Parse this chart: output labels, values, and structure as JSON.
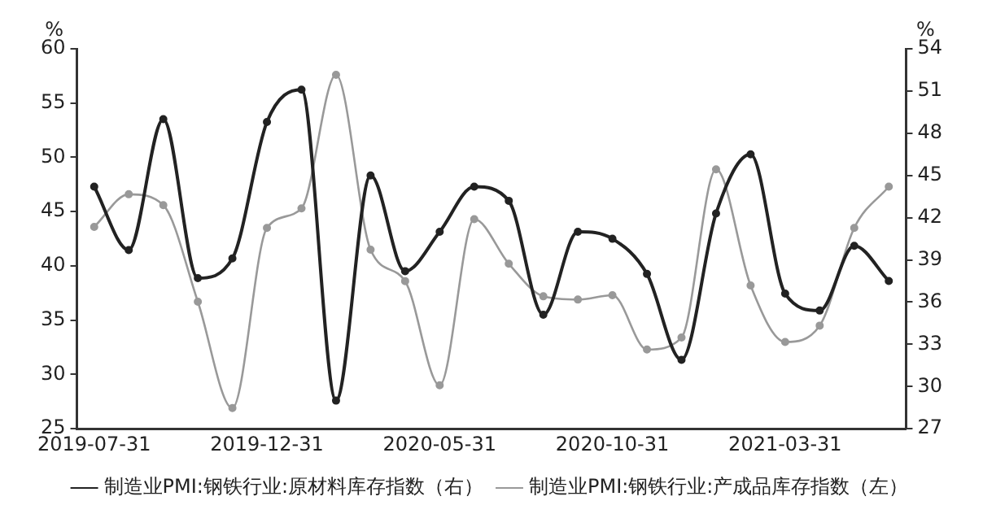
{
  "chart_data": {
    "type": "line",
    "categories": [
      "2019-07-31",
      null,
      null,
      null,
      null,
      "2019-12-31",
      null,
      null,
      null,
      null,
      "2020-05-31",
      null,
      null,
      null,
      null,
      "2020-10-31",
      null,
      null,
      null,
      null,
      "2021-03-31",
      null,
      null,
      null
    ],
    "series": [
      {
        "name": "制造业PMI:钢铁行业:原材料库存指数（右）",
        "color": "#222222",
        "axis": "y2",
        "values": [
          44.2,
          39.7,
          49.0,
          37.7,
          39.1,
          48.8,
          51.1,
          29.0,
          45.0,
          38.2,
          41.0,
          44.2,
          43.2,
          35.1,
          41.0,
          40.5,
          38.0,
          31.9,
          42.3,
          46.5,
          36.6,
          35.4,
          40.0,
          37.5
        ]
      },
      {
        "name": "制造业PMI:钢铁行业:产成品库存指数（左）",
        "color": "#999999",
        "values": [
          43.6,
          46.6,
          45.6,
          36.7,
          26.9,
          43.5,
          45.3,
          57.6,
          41.5,
          38.6,
          29.0,
          44.3,
          40.2,
          37.2,
          36.9,
          37.3,
          32.3,
          33.4,
          48.9,
          38.2,
          33.0,
          34.5,
          43.5,
          47.3
        ]
      }
    ],
    "ylabel": "%",
    "y2label": "%",
    "ylim": [
      25,
      60
    ],
    "yticks": [
      25,
      30,
      35,
      40,
      45,
      50,
      55,
      60
    ],
    "y2lim": [
      27,
      54
    ],
    "y2ticks": [
      27,
      30,
      33,
      36,
      39,
      42,
      45,
      48,
      51,
      54
    ],
    "legend": "bottom",
    "marker": "circle",
    "line_style": "solid"
  }
}
